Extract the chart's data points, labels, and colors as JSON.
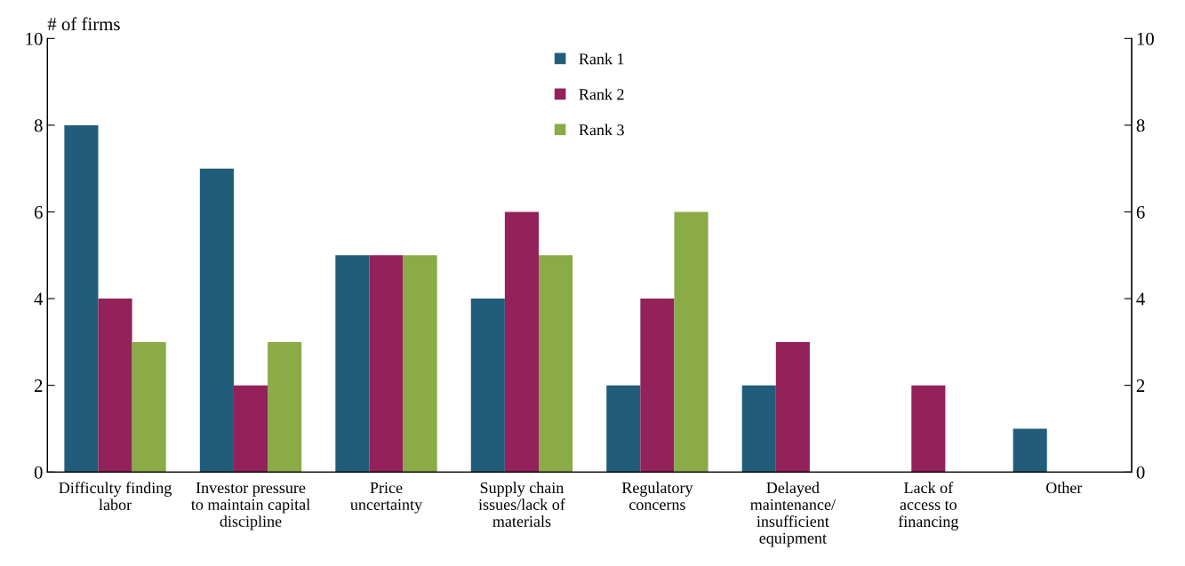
{
  "chart_data": {
    "type": "bar",
    "ylabel": "# of firms",
    "categories": [
      "Difficulty finding\nlabor",
      "Investor pressure\nto maintain capital\ndiscipline",
      "Price\nuncertainty",
      "Supply chain\nissues/lack of\nmaterials",
      "Regulatory\nconcerns",
      "Delayed\nmaintenance/\ninsufficient\nequipment",
      "Lack of\naccess to\nfinancing",
      "Other"
    ],
    "series": [
      {
        "name": "Rank 1",
        "color": "#215d7a",
        "values": [
          8,
          7,
          5,
          4,
          2,
          2,
          0,
          1
        ]
      },
      {
        "name": "Rank 2",
        "color": "#93215a",
        "values": [
          4,
          2,
          5,
          6,
          4,
          3,
          2,
          0
        ]
      },
      {
        "name": "Rank 3",
        "color": "#8aab45",
        "values": [
          3,
          3,
          5,
          5,
          6,
          0,
          0,
          0
        ]
      }
    ],
    "ylim": [
      0,
      10
    ],
    "yticks": [
      0,
      2,
      4,
      6,
      8,
      10
    ],
    "y2lim": [
      0,
      10
    ],
    "y2ticks": [
      0,
      2,
      4,
      6,
      8,
      10
    ],
    "legend": "top",
    "grid": false
  }
}
